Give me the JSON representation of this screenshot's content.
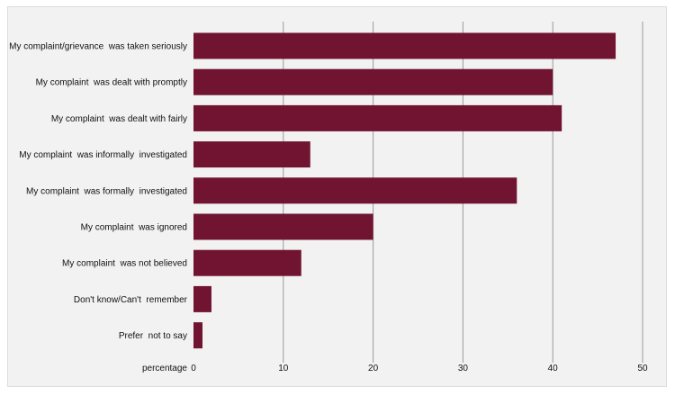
{
  "chart_data": {
    "type": "bar",
    "orientation": "horizontal",
    "categories": [
      "My complaint/grievance  was taken seriously",
      "My complaint  was dealt with promptly",
      "My complaint  was dealt with fairly",
      "My complaint  was informally  investigated",
      "My complaint  was formally  investigated",
      "My complaint  was ignored",
      "My complaint  was not believed",
      "Don't know/Can't  remember",
      "Prefer  not to say"
    ],
    "values": [
      47,
      40,
      41,
      13,
      36,
      20,
      12,
      2,
      1
    ],
    "xlabel": "percentage",
    "xlim": [
      0,
      50
    ],
    "xticks": [
      0,
      10,
      20,
      30,
      40,
      50
    ],
    "grid": "vertical",
    "colors": {
      "bar": "#701431",
      "background": "#f2f2f2",
      "grid": "#9a9a9a"
    }
  }
}
